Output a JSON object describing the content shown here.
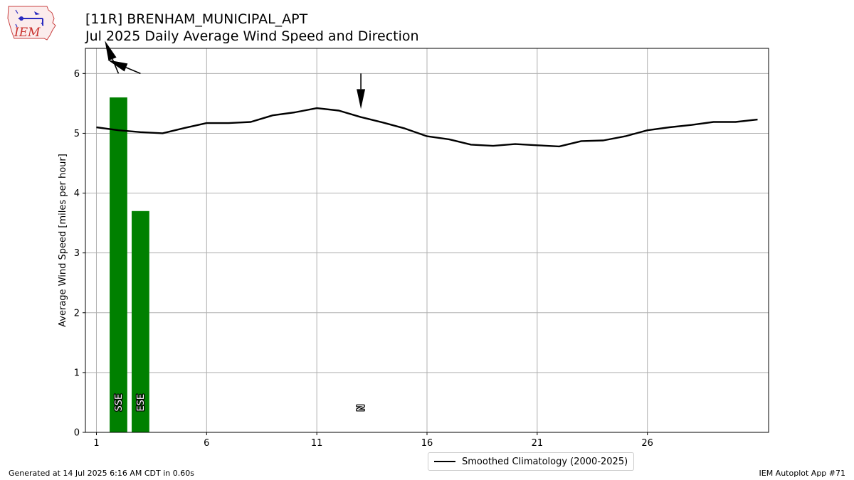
{
  "title": "[11R] BRENHAM_MUNICIPAL_APT",
  "subtitle": "Jul 2025 Daily Average Wind Speed and Direction",
  "footer_left": "Generated at 14 Jul 2025 6:16 AM CDT in 0.60s",
  "footer_right": "IEM Autoplot App #71",
  "logo_text": "IEM",
  "legend_label": "Smoothed Climatology (2000-2025)",
  "colors": {
    "bar": "#008000",
    "line": "#000000",
    "grid": "#b0b0b0"
  },
  "chart_data": {
    "type": "bar",
    "title": "[11R] BRENHAM_MUNICIPAL_APT",
    "subtitle": "Jul 2025 Daily Average Wind Speed and Direction",
    "ylabel": "Average Wind Speed [miles per hour]",
    "xlim": [
      0.5,
      31.5
    ],
    "ylim": [
      0,
      6.42
    ],
    "xticks": [
      1,
      6,
      11,
      16,
      21,
      26
    ],
    "yticks": [
      0,
      1,
      2,
      3,
      4,
      5,
      6
    ],
    "grid": true,
    "legend_placement": "bottom-center",
    "bars": [
      {
        "day": 2,
        "value": 5.6,
        "direction_label": "SSE"
      },
      {
        "day": 3,
        "value": 3.7,
        "direction_label": "ESE"
      },
      {
        "day": 13,
        "value": 0.0,
        "direction_label": "N"
      }
    ],
    "wind_arrows": [
      {
        "day": 2,
        "direction": "SSE"
      },
      {
        "day": 3,
        "direction": "ESE"
      },
      {
        "day": 13,
        "direction": "N"
      }
    ],
    "series": [
      {
        "name": "Smoothed Climatology (2000-2025)",
        "x": [
          1,
          2,
          3,
          4,
          5,
          6,
          7,
          8,
          9,
          10,
          11,
          12,
          13,
          14,
          15,
          16,
          17,
          18,
          19,
          20,
          21,
          22,
          23,
          24,
          25,
          26,
          27,
          28,
          29,
          30,
          31
        ],
        "values": [
          5.1,
          5.05,
          5.02,
          5.0,
          5.09,
          5.17,
          5.17,
          5.19,
          5.3,
          5.35,
          5.42,
          5.38,
          5.27,
          5.18,
          5.08,
          4.95,
          4.9,
          4.81,
          4.79,
          4.82,
          4.8,
          4.78,
          4.87,
          4.88,
          4.95,
          5.05,
          5.1,
          5.14,
          5.19,
          5.19,
          5.23
        ]
      }
    ]
  }
}
